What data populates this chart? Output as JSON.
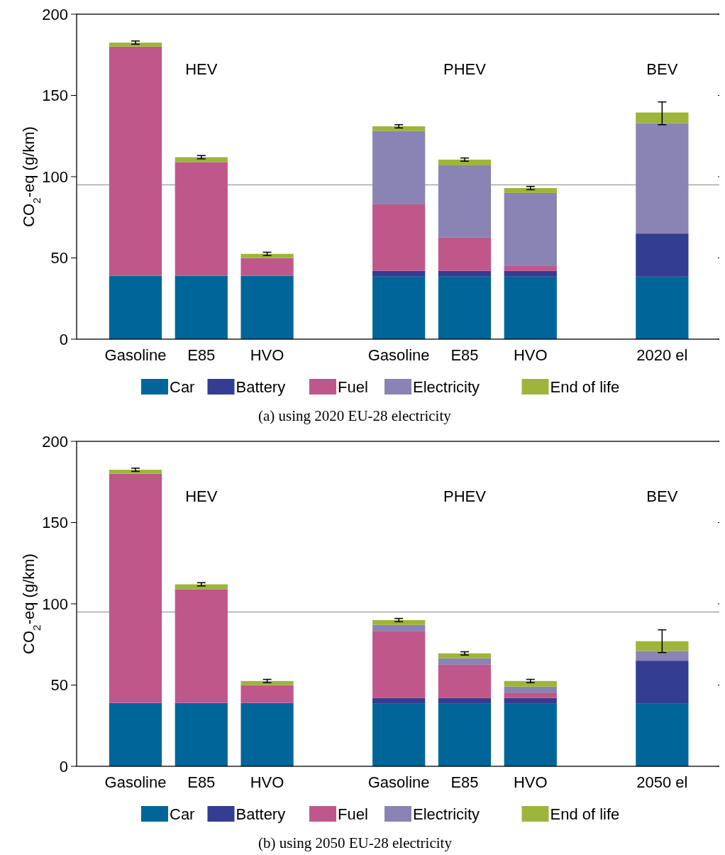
{
  "chart_data": [
    {
      "type": "bar",
      "title": "(a) using 2020 EU-28 electricity",
      "ylabel": "CO$_{2}$-eq (g/km)",
      "stacked": true,
      "legend": "bottom",
      "categories": [
        "Gasoline",
        "E85",
        "HVO",
        null,
        "Gasoline",
        "E85",
        "HVO",
        null,
        "2020 el"
      ],
      "series": [
        {
          "name": "Car",
          "color": "#006699",
          "values": [
            39,
            39,
            39,
            null,
            38.5,
            38.5,
            38.5,
            null,
            38.5
          ]
        },
        {
          "name": "Battery",
          "color": "#333d91",
          "values": [
            0,
            0,
            0,
            null,
            3.5,
            3.5,
            3.5,
            null,
            26.5
          ]
        },
        {
          "name": "Fuel",
          "color": "#c0578a",
          "values": [
            141,
            70,
            11,
            null,
            41,
            20.5,
            3,
            null,
            0
          ]
        },
        {
          "name": "Electricity",
          "color": "#8a84b4",
          "values": [
            0,
            0,
            0,
            null,
            45,
            44.5,
            45,
            null,
            68
          ]
        },
        {
          "name": "End of life",
          "color": "#9db53a",
          "values": [
            2.5,
            3,
            2.5,
            null,
            3,
            3.5,
            3,
            null,
            6.5
          ],
          "errors": [
            [
              181.5,
              183.5
            ],
            [
              111,
              113
            ],
            [
              51.5,
              53.5
            ],
            null,
            [
              130,
              132
            ],
            [
              109.5,
              111.5
            ],
            [
              92,
              94
            ],
            null,
            [
              132,
              146
            ]
          ]
        }
      ],
      "ylim": [
        0,
        200
      ],
      "yticks": [
        0,
        50,
        100,
        150,
        200
      ],
      "ref_lines": [
        {
          "axis": "y",
          "value": 95,
          "color": "#a6a6a6"
        }
      ],
      "annotations": [
        "HEV",
        "PHEV",
        "BEV"
      ]
    },
    {
      "type": "bar",
      "title": "(b) using 2050 EU-28 electricity",
      "ylabel": "CO$_{2}$-eq (g/km)",
      "stacked": true,
      "legend": "bottom",
      "categories": [
        "Gasoline",
        "E85",
        "HVO",
        null,
        "Gasoline",
        "E85",
        "HVO",
        null,
        "2050 el"
      ],
      "series": [
        {
          "name": "Car",
          "color": "#006699",
          "values": [
            39,
            39,
            39,
            null,
            38.5,
            38.5,
            38.5,
            null,
            38.5
          ]
        },
        {
          "name": "Battery",
          "color": "#333d91",
          "values": [
            0,
            0,
            0,
            null,
            3.5,
            3.5,
            3.5,
            null,
            26.5
          ]
        },
        {
          "name": "Fuel",
          "color": "#c0578a",
          "values": [
            141,
            70,
            11,
            null,
            41,
            20.5,
            3,
            null,
            0
          ]
        },
        {
          "name": "Electricity",
          "color": "#8a84b4",
          "values": [
            0,
            0,
            0,
            null,
            4,
            4,
            4,
            null,
            6
          ]
        },
        {
          "name": "End of life",
          "color": "#9db53a",
          "values": [
            2.5,
            3,
            2.5,
            null,
            3,
            3,
            3.5,
            null,
            6
          ],
          "errors": [
            [
              181.5,
              183.5
            ],
            [
              111,
              113
            ],
            [
              51.5,
              53.5
            ],
            null,
            [
              89,
              91
            ],
            [
              68.5,
              70.5
            ],
            [
              51.5,
              53.5
            ],
            null,
            [
              70,
              84
            ]
          ]
        }
      ],
      "ylim": [
        0,
        200
      ],
      "yticks": [
        0,
        50,
        100,
        150,
        200
      ],
      "ref_lines": [
        {
          "axis": "y",
          "value": 95,
          "color": "#a6a6a6"
        }
      ],
      "annotations": [
        "HEV",
        "PHEV",
        "BEV"
      ]
    }
  ]
}
